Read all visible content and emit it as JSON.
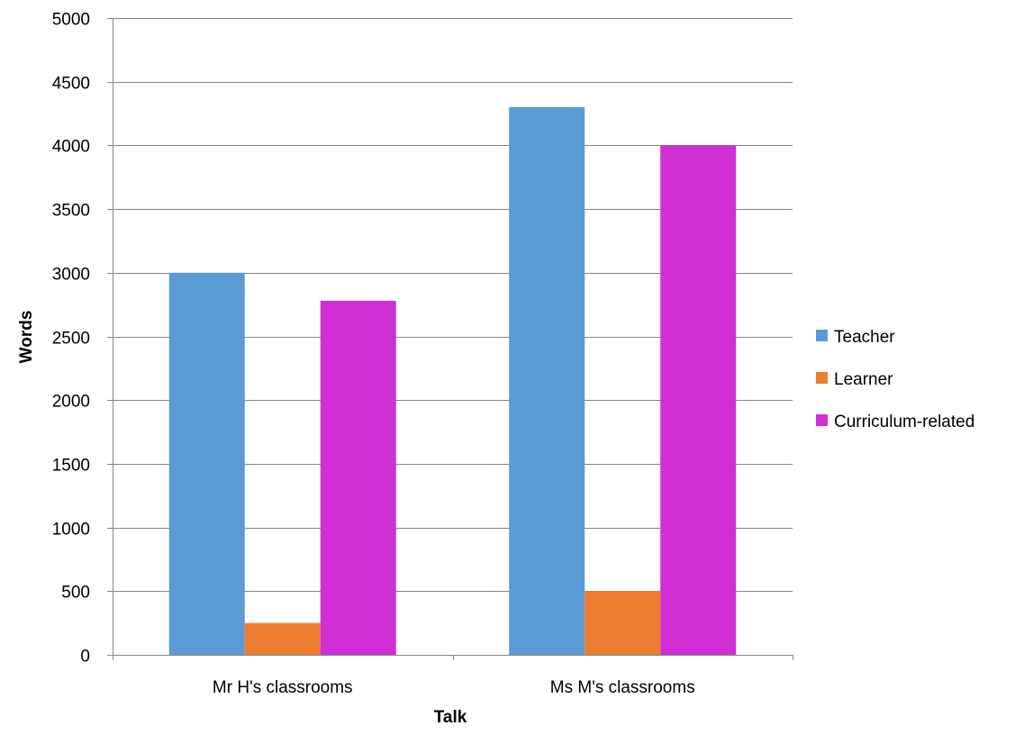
{
  "chart_data": {
    "type": "bar",
    "title": "",
    "xlabel": "Talk",
    "ylabel": "Words",
    "categories": [
      "Mr H's classrooms",
      "Ms M's classrooms"
    ],
    "series": [
      {
        "name": "Teacher",
        "values": [
          3000,
          4300
        ],
        "color": "#5B9BD5"
      },
      {
        "name": "Learner",
        "values": [
          250,
          500
        ],
        "color": "#ED7D31"
      },
      {
        "name": "Curriculum-related",
        "values": [
          2780,
          4000
        ],
        "color": "#D02FD4"
      }
    ],
    "ylim": [
      0,
      5000
    ],
    "yticks": [
      0,
      500,
      1000,
      1500,
      2000,
      2500,
      3000,
      3500,
      4000,
      4500,
      5000
    ],
    "grid": true,
    "legend_position": "right"
  }
}
